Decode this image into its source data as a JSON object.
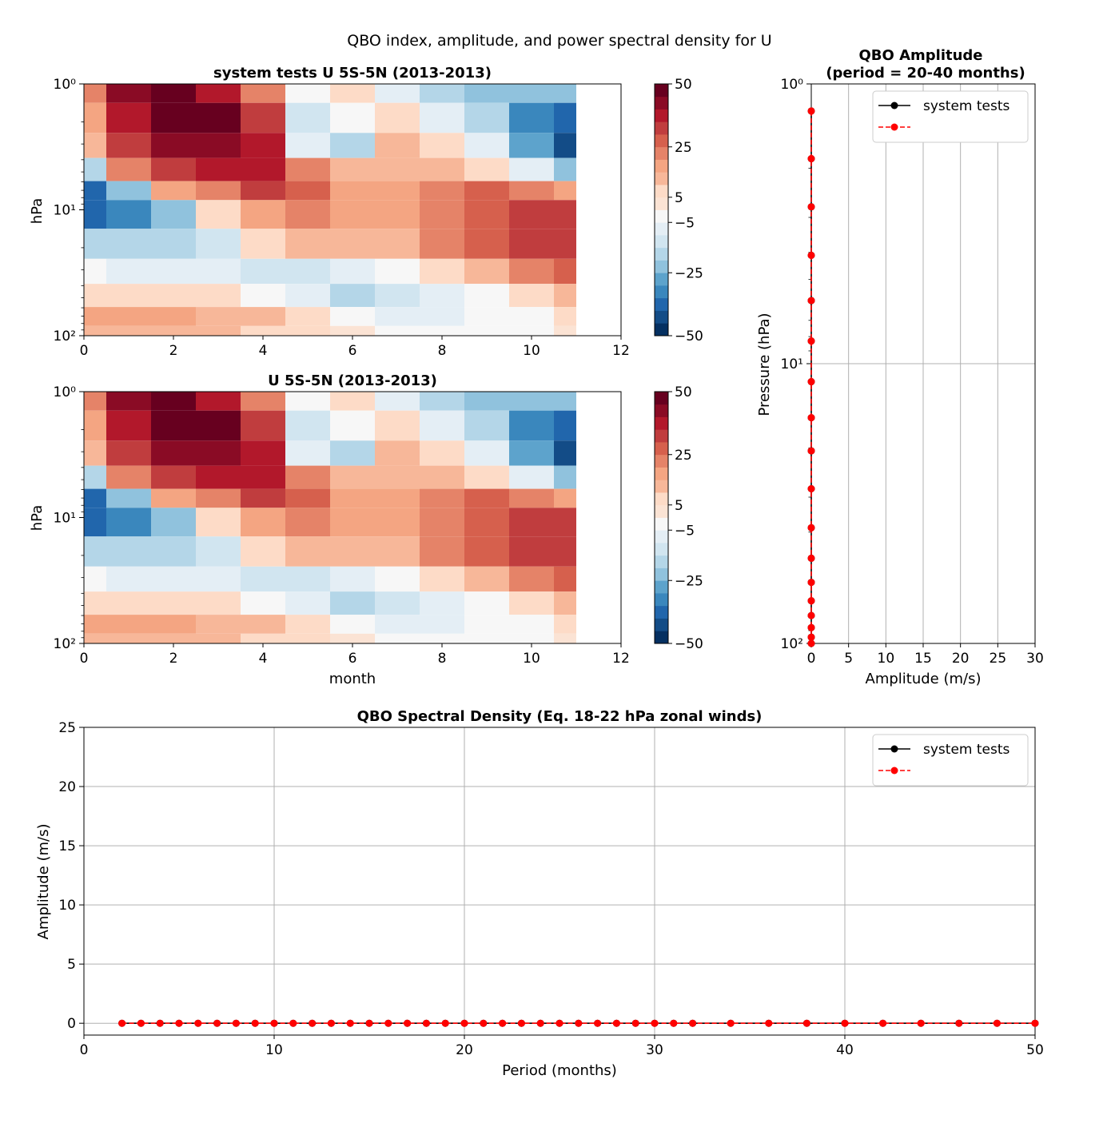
{
  "figure": {
    "title": "QBO index, amplitude, and power spectral density for U",
    "palette": [
      "#053061",
      "#134c87",
      "#2166ac",
      "#3a87bd",
      "#5da3cc",
      "#90c2dd",
      "#b4d6e8",
      "#d1e5f0",
      "#e4eef5",
      "#f7f7f7",
      "#fbe3d4",
      "#fddbc7",
      "#f7b799",
      "#f4a582",
      "#e58368",
      "#d6604d",
      "#c03d3e",
      "#b2182b",
      "#8a0b25",
      "#67001f"
    ],
    "colorbar_ticks": [
      "50",
      "25",
      "5",
      "−5",
      "−25",
      "−50"
    ]
  },
  "chart_data": [
    {
      "id": "hov_test",
      "type": "heatmap",
      "title": "system tests U 5S-5N (2013-2013)",
      "xlabel": "",
      "ylabel": "hPa",
      "xlim": [
        0,
        12
      ],
      "ylim_log_hPa": [
        100,
        1
      ],
      "x_ticks": [
        "0",
        "2",
        "4",
        "6",
        "8",
        "10",
        "12"
      ],
      "y_ticks": [
        "10⁰",
        "10¹",
        "10²"
      ],
      "months": [
        0,
        1,
        2,
        3,
        4,
        5,
        6,
        7,
        8,
        9,
        10,
        11
      ],
      "levels_hPa": [
        1,
        2,
        3,
        5,
        7,
        10,
        20,
        30,
        50,
        70,
        100
      ],
      "values_m_s": [
        [
          20,
          40,
          45,
          35,
          20,
          -5,
          5,
          -10,
          -20,
          -25,
          -25,
          -25
        ],
        [
          15,
          35,
          45,
          45,
          30,
          -15,
          -5,
          5,
          -10,
          -20,
          -35,
          -40
        ],
        [
          10,
          30,
          40,
          40,
          35,
          -10,
          -20,
          10,
          5,
          -10,
          -30,
          -45
        ],
        [
          -20,
          20,
          30,
          35,
          35,
          20,
          10,
          10,
          10,
          5,
          -10,
          -25
        ],
        [
          -40,
          -25,
          15,
          20,
          30,
          25,
          15,
          15,
          20,
          25,
          20,
          15
        ],
        [
          -40,
          -35,
          -25,
          5,
          15,
          20,
          15,
          15,
          20,
          25,
          30,
          30
        ],
        [
          -20,
          -20,
          -20,
          -15,
          5,
          10,
          10,
          10,
          20,
          25,
          30,
          30
        ],
        [
          -5,
          -10,
          -10,
          -10,
          -15,
          -15,
          -10,
          -5,
          5,
          10,
          20,
          25
        ],
        [
          5,
          5,
          5,
          5,
          -5,
          -10,
          -20,
          -15,
          -10,
          -5,
          5,
          10
        ],
        [
          15,
          15,
          15,
          10,
          10,
          5,
          -5,
          -10,
          -10,
          -5,
          -5,
          5
        ],
        [
          10,
          10,
          10,
          10,
          5,
          5,
          0,
          -5,
          -5,
          -5,
          -5,
          0
        ]
      ]
    },
    {
      "id": "hov_ref",
      "type": "heatmap",
      "title": "U 5S-5N (2013-2013)",
      "xlabel": "month",
      "ylabel": "hPa",
      "xlim": [
        0,
        12
      ],
      "ylim_log_hPa": [
        100,
        1
      ],
      "x_ticks": [
        "0",
        "2",
        "4",
        "6",
        "8",
        "10",
        "12"
      ],
      "y_ticks": [
        "10⁰",
        "10¹",
        "10²"
      ],
      "months": [
        0,
        1,
        2,
        3,
        4,
        5,
        6,
        7,
        8,
        9,
        10,
        11
      ],
      "levels_hPa": [
        1,
        2,
        3,
        5,
        7,
        10,
        20,
        30,
        50,
        70,
        100
      ],
      "values_m_s": [
        [
          20,
          40,
          45,
          35,
          20,
          -5,
          5,
          -10,
          -20,
          -25,
          -25,
          -25
        ],
        [
          15,
          35,
          45,
          45,
          30,
          -15,
          -5,
          5,
          -10,
          -20,
          -35,
          -40
        ],
        [
          10,
          30,
          40,
          40,
          35,
          -10,
          -20,
          10,
          5,
          -10,
          -30,
          -45
        ],
        [
          -20,
          20,
          30,
          35,
          35,
          20,
          10,
          10,
          10,
          5,
          -10,
          -25
        ],
        [
          -40,
          -25,
          15,
          20,
          30,
          25,
          15,
          15,
          20,
          25,
          20,
          15
        ],
        [
          -40,
          -35,
          -25,
          5,
          15,
          20,
          15,
          15,
          20,
          25,
          30,
          30
        ],
        [
          -20,
          -20,
          -20,
          -15,
          5,
          10,
          10,
          10,
          20,
          25,
          30,
          30
        ],
        [
          -5,
          -10,
          -10,
          -10,
          -15,
          -15,
          -10,
          -5,
          5,
          10,
          20,
          25
        ],
        [
          5,
          5,
          5,
          5,
          -5,
          -10,
          -20,
          -15,
          -10,
          -5,
          5,
          10
        ],
        [
          15,
          15,
          15,
          10,
          10,
          5,
          -5,
          -10,
          -10,
          -5,
          -5,
          5
        ],
        [
          10,
          10,
          10,
          10,
          5,
          5,
          0,
          -5,
          -5,
          -5,
          -5,
          0
        ]
      ]
    },
    {
      "id": "amplitude",
      "type": "line",
      "title": "QBO Amplitude\n(period = 20-40 months)",
      "title_lines": [
        "QBO Amplitude",
        "(period = 20-40 months)"
      ],
      "xlabel": "Amplitude (m/s)",
      "ylabel": "Pressure (hPa)",
      "xlim": [
        0,
        30
      ],
      "ylim_log_hPa": [
        100,
        1
      ],
      "x_ticks": [
        "0",
        "5",
        "10",
        "15",
        "20",
        "25",
        "30"
      ],
      "y_ticks": [
        "10⁰",
        "10¹",
        "10²"
      ],
      "legend": [
        "system tests",
        ""
      ],
      "legend_position": "top-right",
      "series": [
        {
          "name": "system tests",
          "color": "#000000",
          "style": "solid",
          "pressure_hPa": [
            1.25,
            1.85,
            2.75,
            4.1,
            5.95,
            8.3,
            11.6,
            15.6,
            20.5,
            28,
            38.6,
            49.6,
            60.5,
            70.4,
            79.5,
            87.8,
            95,
            100
          ],
          "amplitude_m_s": [
            0,
            0,
            0,
            0,
            0,
            0,
            0,
            0,
            0,
            0,
            0,
            0,
            0,
            0,
            0,
            0,
            0,
            0
          ]
        },
        {
          "name": "",
          "color": "#ff0000",
          "style": "dashed",
          "pressure_hPa": [
            1.25,
            1.85,
            2.75,
            4.1,
            5.95,
            8.3,
            11.6,
            15.6,
            20.5,
            28,
            38.6,
            49.6,
            60.5,
            70.4,
            79.5,
            87.8,
            95,
            100
          ],
          "amplitude_m_s": [
            0,
            0,
            0,
            0,
            0,
            0,
            0,
            0,
            0,
            0,
            0,
            0,
            0,
            0,
            0,
            0,
            0,
            0
          ]
        }
      ]
    },
    {
      "id": "spectral",
      "type": "line",
      "title": "QBO Spectral Density (Eq. 18-22 hPa zonal winds)",
      "xlabel": "Period (months)",
      "ylabel": "Amplitude (m/s)",
      "xlim": [
        0,
        50
      ],
      "ylim": [
        -1,
        25
      ],
      "x_ticks": [
        "0",
        "10",
        "20",
        "30",
        "40",
        "50"
      ],
      "y_ticks": [
        "0",
        "5",
        "10",
        "15",
        "20",
        "25"
      ],
      "legend": [
        "system tests",
        ""
      ],
      "legend_position": "top-right",
      "series": [
        {
          "name": "system tests",
          "color": "#000000",
          "style": "solid",
          "period_months": [
            2,
            3,
            4,
            5,
            6,
            7,
            8,
            9,
            10,
            11,
            12,
            13,
            14,
            15,
            16,
            17,
            18,
            19,
            20,
            21,
            22,
            23,
            24,
            25,
            26,
            27,
            28,
            29,
            30,
            31,
            32,
            34,
            36,
            38,
            40,
            42,
            44,
            46,
            48,
            50
          ],
          "amplitude_m_s": [
            0,
            0,
            0,
            0,
            0,
            0,
            0,
            0,
            0,
            0,
            0,
            0,
            0,
            0,
            0,
            0,
            0,
            0,
            0,
            0,
            0,
            0,
            0,
            0,
            0,
            0,
            0,
            0,
            0,
            0,
            0,
            0,
            0,
            0,
            0,
            0,
            0,
            0,
            0,
            0
          ]
        },
        {
          "name": "",
          "color": "#ff0000",
          "style": "dashed",
          "period_months": [
            2,
            3,
            4,
            5,
            6,
            7,
            8,
            9,
            10,
            11,
            12,
            13,
            14,
            15,
            16,
            17,
            18,
            19,
            20,
            21,
            22,
            23,
            24,
            25,
            26,
            27,
            28,
            29,
            30,
            31,
            32,
            34,
            36,
            38,
            40,
            42,
            44,
            46,
            48,
            50
          ],
          "amplitude_m_s": [
            0,
            0,
            0,
            0,
            0,
            0,
            0,
            0,
            0,
            0,
            0,
            0,
            0,
            0,
            0,
            0,
            0,
            0,
            0,
            0,
            0,
            0,
            0,
            0,
            0,
            0,
            0,
            0,
            0,
            0,
            0,
            0,
            0,
            0,
            0,
            0,
            0,
            0,
            0,
            0
          ]
        }
      ]
    }
  ]
}
